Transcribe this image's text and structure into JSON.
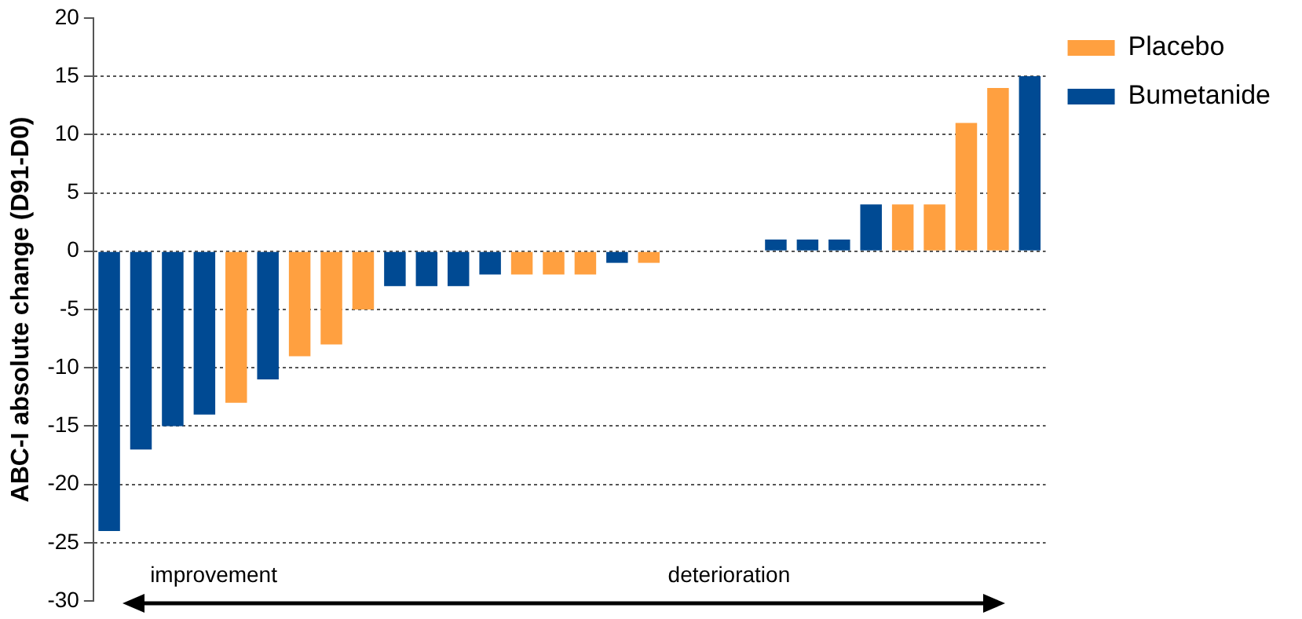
{
  "chart_data": {
    "type": "bar",
    "ylabel": "ABC-I absolute change (D91-D0)",
    "categories": [
      null,
      null,
      null,
      null,
      null,
      null,
      null,
      null,
      null,
      null,
      null,
      null,
      null,
      null,
      null,
      null,
      null,
      null,
      null,
      null,
      null,
      null,
      null,
      null,
      null,
      null,
      null,
      null,
      null,
      null
    ],
    "series": [
      {
        "name": "Placebo",
        "color": "#ffa040",
        "values": [
          null,
          null,
          null,
          null,
          -13,
          null,
          -9,
          -8,
          -5,
          null,
          null,
          null,
          null,
          -2,
          -2,
          -2,
          null,
          -1,
          null,
          null,
          null,
          null,
          null,
          null,
          null,
          4,
          4,
          11,
          14,
          null
        ]
      },
      {
        "name": "Bumetanide",
        "color": "#004a93",
        "values": [
          -24,
          -17,
          -15,
          -14,
          null,
          -11,
          null,
          null,
          null,
          -3,
          -3,
          -3,
          -2,
          null,
          null,
          null,
          -1,
          null,
          null,
          null,
          null,
          1,
          1,
          1,
          4,
          null,
          null,
          null,
          null,
          15
        ]
      }
    ],
    "ylim": [
      -30,
      20
    ],
    "yticks": [
      -30,
      -25,
      -20,
      -15,
      -10,
      -5,
      0,
      5,
      10,
      15,
      20
    ],
    "grid": "y",
    "legend": "top right",
    "tick_labels": "y",
    "annotations": [
      "improvement",
      "deterioration"
    ]
  }
}
